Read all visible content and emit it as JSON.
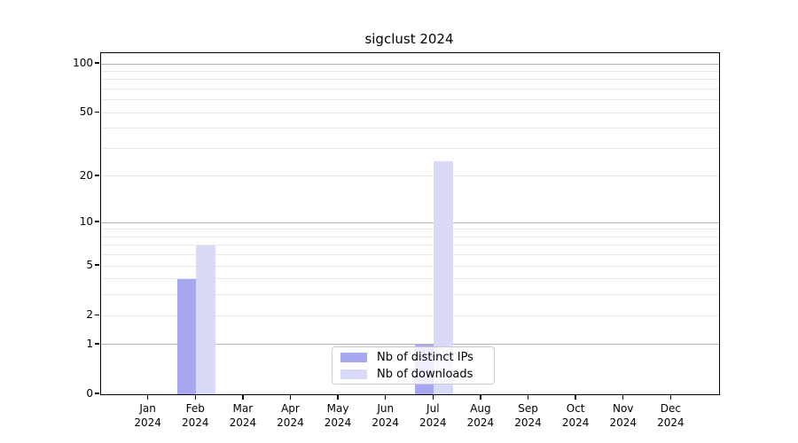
{
  "chart_data": {
    "type": "bar",
    "title": "sigclust 2024",
    "categories": [
      "Jan",
      "Feb",
      "Mar",
      "Apr",
      "May",
      "Jun",
      "Jul",
      "Aug",
      "Sep",
      "Oct",
      "Nov",
      "Dec"
    ],
    "x_tick_year": "2024",
    "series": [
      {
        "name": "Nb of distinct IPs",
        "color": "#a8a8f0",
        "values": [
          0,
          4,
          0,
          0,
          0,
          0,
          1,
          0,
          0,
          0,
          0,
          0
        ]
      },
      {
        "name": "Nb of downloads",
        "color": "#d9d9f8",
        "values": [
          0,
          7,
          0,
          0,
          0,
          0,
          25,
          0,
          0,
          0,
          0,
          0
        ]
      }
    ],
    "y_axis": {
      "scale": "log1p",
      "ticks": [
        0,
        1,
        2,
        5,
        10,
        20,
        50,
        100
      ],
      "major_gridlines": [
        1,
        10,
        100
      ],
      "minor_gridlines": [
        2,
        3,
        4,
        5,
        6,
        7,
        8,
        9,
        20,
        30,
        40,
        50,
        60,
        70,
        80,
        90
      ],
      "range": [
        0,
        117
      ]
    },
    "legend": {
      "position": "lower center"
    },
    "grid": true
  },
  "colors": {
    "background": "#ffffff",
    "axis": "#000000",
    "major_grid": "#b0b0b0",
    "minor_grid": "#e9e9e9",
    "distinct_ips": "#a8a8f0",
    "downloads": "#d9d9f8"
  }
}
